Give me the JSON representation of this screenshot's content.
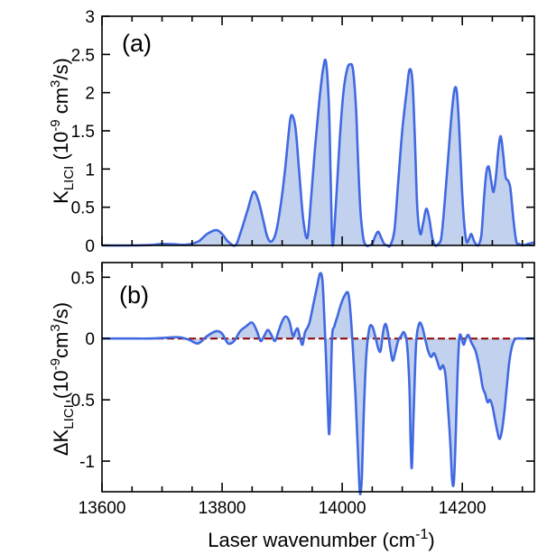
{
  "figure": {
    "xlabel": "Laser wavenumber (cm",
    "xlabel_sup": "-1",
    "xlabel_end": ")"
  },
  "chart_data": [
    {
      "type": "area",
      "panel_label": "(a)",
      "ylabel": {
        "base": "K",
        "sub": "LICI",
        "pre_units": " (10",
        "exp": "-9",
        "mid_units": " cm",
        "exp2": "3",
        "end_units": "/s)"
      },
      "xlim": [
        13600,
        14320
      ],
      "ylim": [
        0,
        3
      ],
      "x_ticks": [
        13600,
        13800,
        14000,
        14200
      ],
      "x_tick_labels": [
        "13600",
        "13800",
        "14000",
        "14200"
      ],
      "y_ticks": [
        0,
        0.5,
        1,
        1.5,
        2,
        2.5,
        3
      ],
      "y_tick_labels": [
        "0",
        "0.5",
        "1",
        "1.5",
        "2",
        "2.5",
        "3"
      ],
      "line_color": "#4169e1",
      "fill_color": "#c2d2ee",
      "series": [
        {
          "x": [
            13600,
            13650,
            13680,
            13700,
            13720,
            13740,
            13760,
            13775,
            13790,
            13800,
            13810,
            13822,
            13830,
            13842,
            13852,
            13860,
            13868,
            13875,
            13882,
            13890,
            13898,
            13905,
            13910,
            13915,
            13922,
            13928,
            13935,
            13942,
            13948,
            13955,
            13962,
            13968,
            13973,
            13978,
            13981,
            13984,
            13990,
            13996,
            14002,
            14008,
            14013,
            14018,
            14023,
            14026,
            14030,
            14035,
            14040,
            14045,
            14050,
            14055,
            14060,
            14065,
            14070,
            14075,
            14080,
            14087,
            14093,
            14100,
            14107,
            14112,
            14117,
            14121,
            14125,
            14130,
            14135,
            14140,
            14145,
            14150,
            14155,
            14160,
            14165,
            14170,
            14176,
            14182,
            14187,
            14191,
            14195,
            14199,
            14203,
            14207,
            14211,
            14215,
            14220,
            14225,
            14228,
            14232,
            14236,
            14240,
            14244,
            14248,
            14252,
            14256,
            14260,
            14264,
            14268,
            14272,
            14276,
            14280,
            14285,
            14290,
            14295,
            14300,
            14310,
            14320
          ],
          "y": [
            0,
            0.0,
            0.005,
            0.02,
            0.015,
            0.01,
            0.05,
            0.15,
            0.2,
            0.15,
            0.05,
            0.0,
            0.15,
            0.45,
            0.7,
            0.6,
            0.35,
            0.12,
            0.05,
            0.18,
            0.55,
            1.0,
            1.4,
            1.7,
            1.55,
            1.0,
            0.35,
            0.1,
            0.6,
            1.3,
            1.9,
            2.3,
            2.4,
            1.8,
            0.8,
            0.0,
            0.6,
            1.4,
            2.0,
            2.3,
            2.37,
            2.3,
            1.8,
            1.2,
            0.5,
            0.1,
            0.0,
            0.0,
            0.02,
            0.12,
            0.18,
            0.1,
            0.02,
            0.0,
            0.0,
            0.2,
            0.8,
            1.5,
            2.0,
            2.3,
            2.15,
            1.4,
            0.5,
            0.15,
            0.3,
            0.48,
            0.35,
            0.1,
            0.0,
            0.02,
            0.1,
            0.5,
            1.1,
            1.7,
            2.04,
            2.0,
            1.5,
            0.8,
            0.3,
            0.05,
            0.08,
            0.15,
            0.05,
            0.0,
            0.02,
            0.15,
            0.6,
            0.95,
            1.03,
            0.85,
            0.7,
            0.9,
            1.25,
            1.43,
            1.2,
            0.9,
            0.85,
            0.75,
            0.35,
            0.05,
            0.02,
            0.0,
            0.02,
            0.04
          ]
        }
      ]
    },
    {
      "type": "area",
      "panel_label": "(b)",
      "ylabel": {
        "base": "ΔK",
        "sub": "LICI",
        "pre_units": " (10",
        "exp": "-9",
        "mid_units": "cm",
        "exp2": "3",
        "end_units": "/s)"
      },
      "xlim": [
        13600,
        14320
      ],
      "ylim": [
        -1.25,
        0.62
      ],
      "x_ticks": [
        13600,
        13800,
        14000,
        14200
      ],
      "x_tick_labels": [
        "13600",
        "13800",
        "14000",
        "14200"
      ],
      "y_ticks": [
        0.5,
        0,
        -0.5,
        -1
      ],
      "y_tick_labels": [
        "0.5",
        "0",
        "-0.5",
        "-1"
      ],
      "line_color": "#4169e1",
      "fill_color": "#c2d2ee",
      "zero_line_color": "#8b0000",
      "series": [
        {
          "x": [
            13600,
            13640,
            13680,
            13700,
            13720,
            13730,
            13745,
            13760,
            13775,
            13790,
            13800,
            13810,
            13820,
            13830,
            13840,
            13850,
            13858,
            13864,
            13870,
            13876,
            13882,
            13888,
            13894,
            13900,
            13906,
            13912,
            13918,
            13922,
            13926,
            13930,
            13934,
            13938,
            13945,
            13952,
            13958,
            13963,
            13967,
            13970,
            13973,
            13976,
            13978,
            13980,
            13983,
            13987,
            13992,
            13998,
            14004,
            14010,
            14014,
            14018,
            14022,
            14026,
            14029,
            14031,
            14033,
            14036,
            14040,
            14045,
            14050,
            14055,
            14060,
            14064,
            14068,
            14072,
            14076,
            14080,
            14084,
            14088,
            14093,
            14098,
            14103,
            14108,
            14112,
            14114,
            14116,
            14119,
            14123,
            14128,
            14133,
            14138,
            14143,
            14148,
            14153,
            14158,
            14163,
            14168,
            14172,
            14176,
            14180,
            14183,
            14186,
            14189,
            14192,
            14195,
            14198,
            14202,
            14206,
            14210,
            14214,
            14218,
            14222,
            14226,
            14230,
            14234,
            14238,
            14242,
            14246,
            14250,
            14254,
            14258,
            14262,
            14266,
            14270,
            14274,
            14278,
            14282,
            14286,
            14290,
            14300,
            14320
          ],
          "y": [
            0,
            0.0,
            0.0,
            0.005,
            0.01,
            0.01,
            -0.01,
            -0.04,
            0.02,
            0.06,
            0.04,
            -0.04,
            -0.02,
            0.06,
            0.1,
            0.13,
            0.06,
            -0.02,
            0.02,
            0.07,
            0.03,
            -0.02,
            0.06,
            0.14,
            0.18,
            0.14,
            0.02,
            0.06,
            0.08,
            0.0,
            -0.05,
            0.05,
            0.12,
            0.28,
            0.42,
            0.53,
            0.48,
            0.2,
            -0.15,
            -0.55,
            -0.78,
            -0.6,
            0.0,
            0.1,
            0.18,
            0.28,
            0.35,
            0.37,
            0.2,
            -0.1,
            -0.45,
            -0.9,
            -1.23,
            -1.25,
            -1.1,
            -0.6,
            -0.15,
            0.08,
            0.1,
            0.02,
            -0.08,
            -0.1,
            0.05,
            0.12,
            0.05,
            -0.08,
            -0.18,
            -0.12,
            -0.02,
            0.02,
            0.05,
            -0.05,
            -0.4,
            -0.85,
            -1.05,
            -0.6,
            -0.05,
            0.12,
            0.1,
            0.0,
            -0.1,
            -0.15,
            -0.12,
            -0.18,
            -0.25,
            -0.22,
            -0.3,
            -0.55,
            -0.85,
            -1.15,
            -1.17,
            -0.8,
            -0.3,
            0.0,
            0.02,
            -0.05,
            0.0,
            0.03,
            -0.02,
            -0.06,
            -0.1,
            -0.18,
            -0.28,
            -0.4,
            -0.45,
            -0.52,
            -0.5,
            -0.55,
            -0.65,
            -0.75,
            -0.82,
            -0.75,
            -0.6,
            -0.4,
            -0.2,
            -0.08,
            -0.02,
            0.0,
            0.0,
            0.0
          ]
        }
      ]
    }
  ]
}
